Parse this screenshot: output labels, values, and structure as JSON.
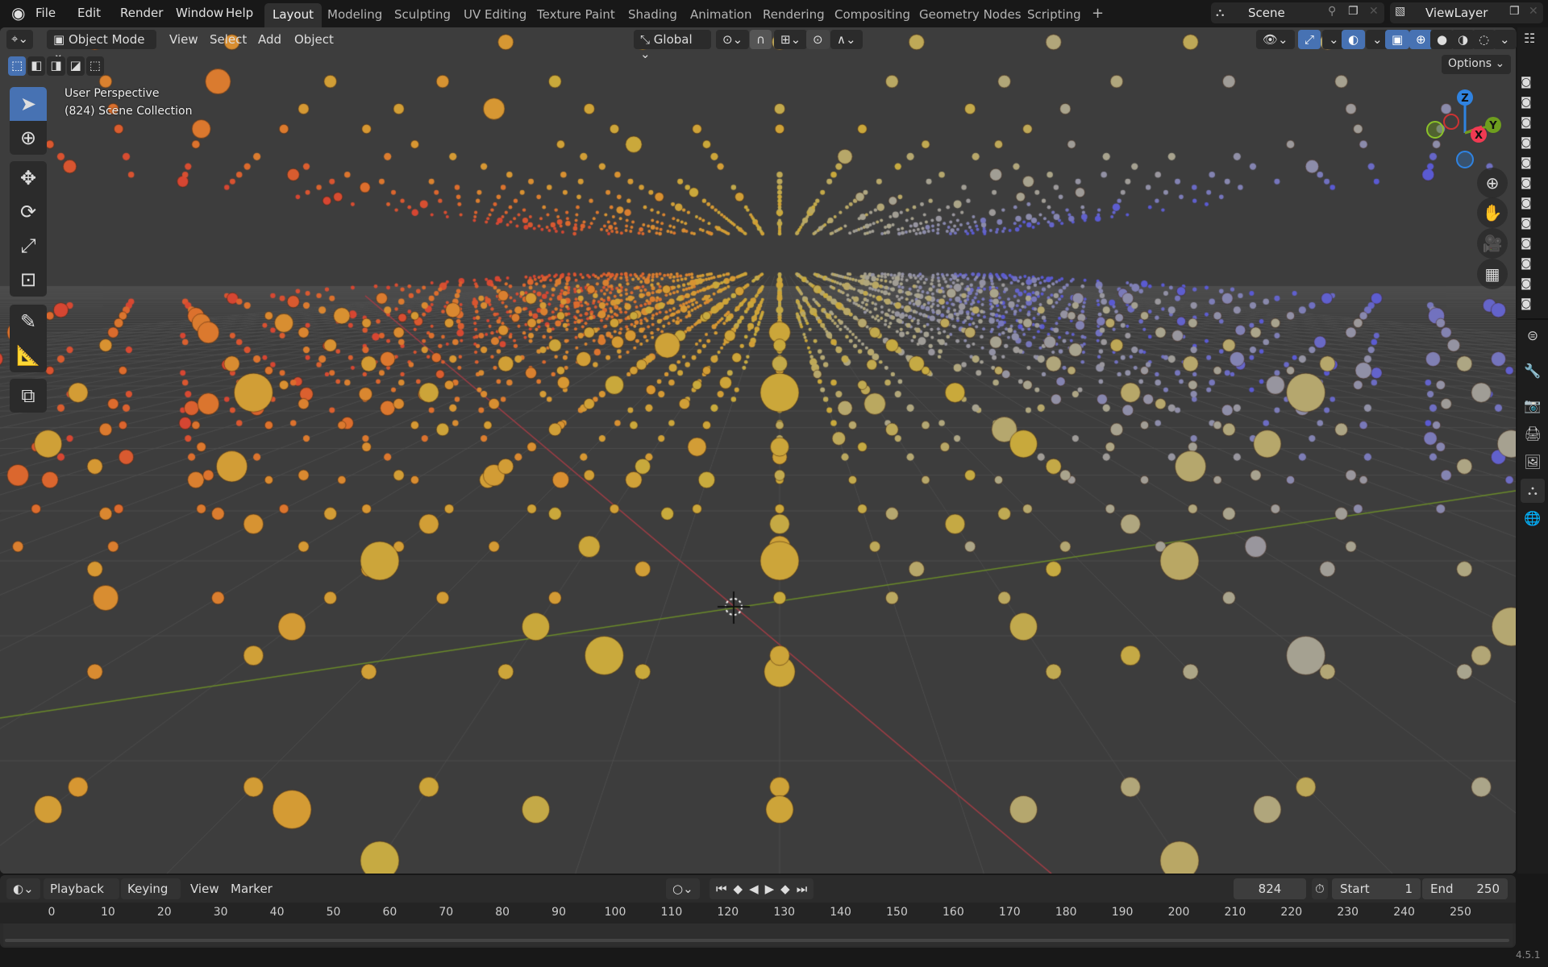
{
  "topbar": {
    "logo": "blender-logo",
    "menus": [
      "File",
      "Edit",
      "Render",
      "Window",
      "Help"
    ],
    "workspaces": [
      "Layout",
      "Modeling",
      "Sculpting",
      "UV Editing",
      "Texture Paint",
      "Shading",
      "Animation",
      "Rendering",
      "Compositing",
      "Geometry Nodes",
      "Scripting"
    ],
    "active_workspace": "Layout",
    "add_tab": "+",
    "scene": "Scene",
    "view_layer": "ViewLayer"
  },
  "viewport_header": {
    "mode": "Object Mode",
    "menus": [
      "View",
      "Select",
      "Add",
      "Object"
    ],
    "orientation": "Global",
    "options": "Options"
  },
  "overlay": {
    "line1": "User Perspective",
    "line2": "(824) Scene Collection"
  },
  "gizmo": {
    "z": "Z",
    "y": "Y",
    "x": "X",
    "colors": {
      "x": "#f03a52",
      "y": "#6e9e1e",
      "z": "#2f83e1"
    }
  },
  "timeline": {
    "menus": [
      "Playback",
      "Keying",
      "View",
      "Marker"
    ],
    "current_frame": "824",
    "start_label": "Start",
    "start": "1",
    "end_label": "End",
    "end": "250",
    "ticks": [
      "0",
      "10",
      "20",
      "30",
      "40",
      "50",
      "60",
      "70",
      "80",
      "90",
      "100",
      "110",
      "120",
      "130",
      "140",
      "150",
      "160",
      "170",
      "180",
      "190",
      "200",
      "210",
      "220",
      "230",
      "240",
      "250"
    ]
  },
  "status": {
    "version": "4.5.1"
  },
  "colors": {
    "accent": "#4772b3",
    "viewport_bg": "#3d3d3d"
  }
}
